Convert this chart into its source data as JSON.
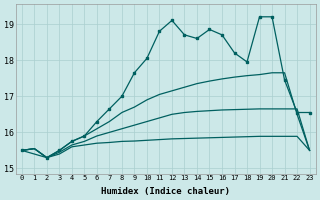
{
  "xlabel": "Humidex (Indice chaleur)",
  "background_color": "#cce8e8",
  "grid_color": "#aacfcf",
  "line_color": "#006060",
  "xlim": [
    -0.5,
    23.5
  ],
  "ylim": [
    14.85,
    19.55
  ],
  "yticks": [
    15,
    16,
    17,
    18,
    19
  ],
  "xticks": [
    0,
    1,
    2,
    3,
    4,
    5,
    6,
    7,
    8,
    9,
    10,
    11,
    12,
    13,
    14,
    15,
    16,
    17,
    18,
    19,
    20,
    21,
    22,
    23
  ],
  "line1_x": [
    0,
    1,
    2,
    3,
    4,
    5,
    6,
    7,
    8,
    9,
    10,
    11,
    12,
    13,
    14,
    15,
    16,
    17,
    18,
    19,
    20,
    21,
    22,
    23
  ],
  "line1_y": [
    15.5,
    15.55,
    15.3,
    15.4,
    15.6,
    15.65,
    15.7,
    15.72,
    15.75,
    15.76,
    15.78,
    15.8,
    15.82,
    15.83,
    15.84,
    15.85,
    15.86,
    15.87,
    15.88,
    15.89,
    15.89,
    15.89,
    15.89,
    15.5
  ],
  "line2_x": [
    0,
    1,
    2,
    3,
    4,
    5,
    6,
    7,
    8,
    9,
    10,
    11,
    12,
    13,
    14,
    15,
    16,
    17,
    18,
    19,
    20,
    21,
    22,
    23
  ],
  "line2_y": [
    15.5,
    15.55,
    15.3,
    15.45,
    15.65,
    15.75,
    15.9,
    16.0,
    16.1,
    16.2,
    16.3,
    16.4,
    16.5,
    16.55,
    16.58,
    16.6,
    16.62,
    16.63,
    16.64,
    16.65,
    16.65,
    16.65,
    16.65,
    15.5
  ],
  "line3_x": [
    0,
    1,
    2,
    3,
    4,
    5,
    6,
    7,
    8,
    9,
    10,
    11,
    12,
    13,
    14,
    15,
    16,
    17,
    18,
    19,
    20,
    21,
    22,
    23
  ],
  "line3_y": [
    15.5,
    15.55,
    15.3,
    15.5,
    15.75,
    15.9,
    16.1,
    16.3,
    16.55,
    16.7,
    16.9,
    17.05,
    17.15,
    17.25,
    17.35,
    17.42,
    17.48,
    17.53,
    17.57,
    17.6,
    17.65,
    17.65,
    16.5,
    15.5
  ],
  "line4_x": [
    0,
    2,
    3,
    4,
    5,
    6,
    7,
    8,
    9,
    10,
    11,
    12,
    13,
    14,
    15,
    16,
    17,
    18,
    19,
    20,
    21,
    22,
    23
  ],
  "line4_y": [
    15.5,
    15.3,
    15.5,
    15.75,
    15.9,
    16.3,
    16.65,
    17.0,
    17.65,
    18.05,
    18.8,
    19.1,
    18.7,
    18.6,
    18.85,
    18.7,
    18.2,
    17.95,
    19.2,
    19.2,
    17.45,
    16.55,
    16.55
  ]
}
